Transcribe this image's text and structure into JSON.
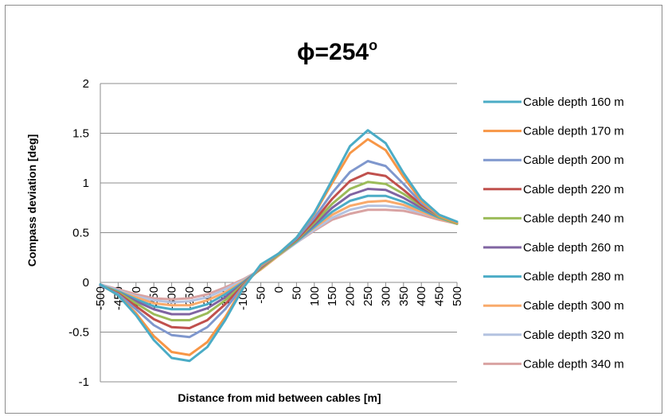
{
  "chart_data": {
    "type": "line",
    "title": "ϕ=254",
    "title_superscript": "o",
    "xlabel": "Distance from mid between cables [m]",
    "ylabel": "Compass deviation [deg]",
    "ylim": [
      -1,
      2
    ],
    "yticks": [
      "2",
      "1.5",
      "1",
      "0.5",
      "0",
      "-0.5",
      "-1"
    ],
    "xlim": [
      -500,
      500
    ],
    "x": [
      -500,
      -450,
      -400,
      -350,
      -300,
      -250,
      -200,
      -150,
      -100,
      -50,
      0,
      50,
      100,
      150,
      200,
      250,
      300,
      350,
      400,
      450,
      500
    ],
    "x_tick_labels": [
      "-500",
      "-450",
      "-400",
      "-350",
      "-300",
      "-250",
      "-200",
      "-150",
      "-100",
      "-50",
      "0",
      "50",
      "100",
      "150",
      "200",
      "250",
      "300",
      "350",
      "400",
      "450",
      "500"
    ],
    "grid": "horizontal",
    "legend": "right",
    "series": [
      {
        "name": "Cable depth 160 m",
        "color": "#4BACC6",
        "values": [
          -0.02,
          -0.13,
          -0.33,
          -0.58,
          -0.76,
          -0.79,
          -0.65,
          -0.38,
          -0.06,
          0.18,
          0.29,
          0.45,
          0.7,
          1.03,
          1.37,
          1.53,
          1.4,
          1.1,
          0.84,
          0.68,
          0.61
        ]
      },
      {
        "name": "Cable depth 170 m",
        "color": "#F79646",
        "values": [
          -0.02,
          -0.13,
          -0.31,
          -0.54,
          -0.7,
          -0.73,
          -0.6,
          -0.35,
          -0.05,
          0.17,
          0.29,
          0.45,
          0.69,
          1.0,
          1.3,
          1.44,
          1.33,
          1.06,
          0.82,
          0.67,
          0.6
        ]
      },
      {
        "name": "Cable depth 200 m",
        "color": "#7F97CD",
        "values": [
          -0.03,
          -0.12,
          -0.27,
          -0.43,
          -0.53,
          -0.55,
          -0.45,
          -0.27,
          -0.04,
          0.16,
          0.29,
          0.44,
          0.65,
          0.9,
          1.11,
          1.22,
          1.17,
          0.99,
          0.8,
          0.67,
          0.6
        ]
      },
      {
        "name": "Cable depth 220 m",
        "color": "#C0504D",
        "values": [
          -0.03,
          -0.11,
          -0.24,
          -0.37,
          -0.45,
          -0.46,
          -0.38,
          -0.22,
          -0.03,
          0.15,
          0.29,
          0.43,
          0.62,
          0.84,
          1.02,
          1.1,
          1.07,
          0.93,
          0.78,
          0.67,
          0.6
        ]
      },
      {
        "name": "Cable depth 240 m",
        "color": "#9BBB59",
        "values": [
          -0.03,
          -0.1,
          -0.21,
          -0.32,
          -0.38,
          -0.38,
          -0.31,
          -0.18,
          -0.02,
          0.14,
          0.28,
          0.42,
          0.6,
          0.79,
          0.94,
          1.01,
          0.99,
          0.89,
          0.77,
          0.66,
          0.59
        ]
      },
      {
        "name": "Cable depth 260 m",
        "color": "#8064A2",
        "values": [
          -0.03,
          -0.1,
          -0.19,
          -0.27,
          -0.32,
          -0.32,
          -0.26,
          -0.15,
          -0.01,
          0.14,
          0.28,
          0.42,
          0.58,
          0.75,
          0.88,
          0.94,
          0.93,
          0.85,
          0.75,
          0.66,
          0.59
        ]
      },
      {
        "name": "Cable depth 280 m",
        "color": "#4BACC6",
        "values": [
          -0.03,
          -0.09,
          -0.17,
          -0.24,
          -0.27,
          -0.27,
          -0.22,
          -0.12,
          0.0,
          0.14,
          0.28,
          0.41,
          0.56,
          0.71,
          0.82,
          0.87,
          0.87,
          0.81,
          0.73,
          0.65,
          0.59
        ]
      },
      {
        "name": "Cable depth 300 m",
        "color": "#F9AA6B",
        "values": [
          -0.03,
          -0.09,
          -0.15,
          -0.21,
          -0.23,
          -0.23,
          -0.18,
          -0.1,
          0.01,
          0.13,
          0.27,
          0.41,
          0.55,
          0.68,
          0.77,
          0.81,
          0.82,
          0.78,
          0.71,
          0.64,
          0.59
        ]
      },
      {
        "name": "Cable depth 320 m",
        "color": "#B3C2E0",
        "values": [
          -0.02,
          -0.08,
          -0.14,
          -0.18,
          -0.2,
          -0.19,
          -0.15,
          -0.07,
          0.02,
          0.13,
          0.27,
          0.4,
          0.53,
          0.65,
          0.73,
          0.77,
          0.77,
          0.75,
          0.7,
          0.64,
          0.59
        ]
      },
      {
        "name": "Cable depth 340 m",
        "color": "#D9A3A2",
        "values": [
          -0.02,
          -0.07,
          -0.12,
          -0.16,
          -0.17,
          -0.16,
          -0.12,
          -0.05,
          0.03,
          0.13,
          0.27,
          0.4,
          0.52,
          0.63,
          0.69,
          0.73,
          0.73,
          0.72,
          0.68,
          0.63,
          0.59
        ]
      }
    ]
  }
}
